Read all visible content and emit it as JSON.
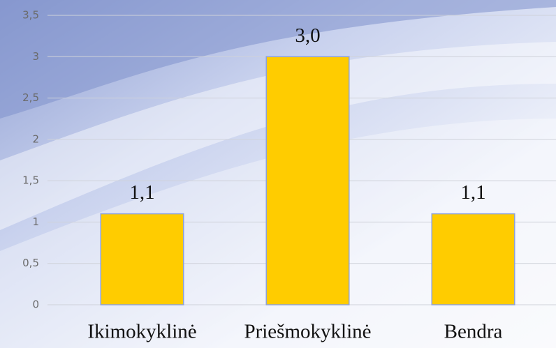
{
  "chart_data": {
    "type": "bar",
    "categories": [
      "Ikimokyklinė",
      "Priešmokyklinė",
      "Bendra"
    ],
    "values": [
      1.1,
      3.0,
      1.1
    ],
    "value_labels": [
      "1,1",
      "3,0",
      "1,1"
    ],
    "color": "#ffcc00",
    "ylim": [
      0,
      3.5
    ],
    "yticks": [
      0,
      {
        "value": 0.5,
        "label": "0,5"
      },
      1,
      {
        "value": 1.5,
        "label": "1,5"
      },
      2,
      {
        "value": 2.5,
        "label": "2,5"
      },
      3,
      {
        "value": 3.5,
        "label": "3,5"
      }
    ],
    "grid": true
  }
}
